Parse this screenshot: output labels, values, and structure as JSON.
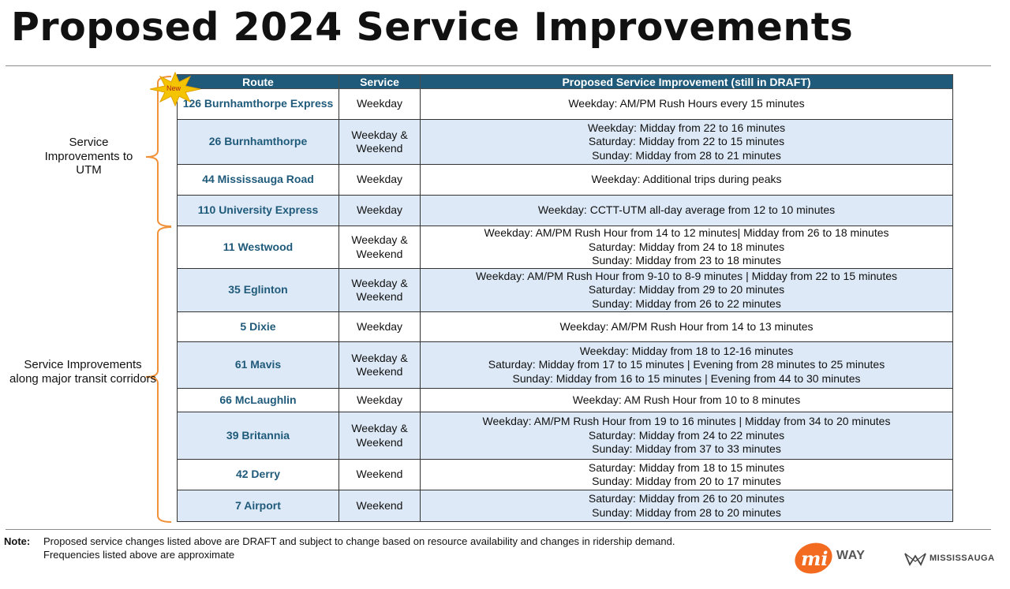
{
  "title": "Proposed 2024 Service Improvements",
  "badge": {
    "label": "New",
    "color": "#f5c400"
  },
  "table": {
    "headers": [
      "Route",
      "Service",
      "Proposed Service Improvement (still in DRAFT)"
    ],
    "rows": [
      {
        "route": "126 Burnhamthorpe Express",
        "service": "Weekday",
        "improvements": [
          "Weekday: AM/PM Rush Hours every 15 minutes"
        ]
      },
      {
        "route": "26 Burnhamthorpe",
        "service": "Weekday & Weekend",
        "improvements": [
          "Weekday: Midday from 22 to 16 minutes",
          "Saturday: Midday from 22 to 15 minutes",
          "Sunday: Midday from 28 to 21 minutes"
        ]
      },
      {
        "route": "44 Mississauga Road",
        "service": "Weekday",
        "improvements": [
          "Weekday: Additional trips during peaks"
        ]
      },
      {
        "route": "110 University Express",
        "service": "Weekday",
        "improvements": [
          "Weekday: CCTT-UTM all-day average from 12 to 10 minutes"
        ]
      },
      {
        "route": "11 Westwood",
        "service": "Weekday & Weekend",
        "improvements": [
          "Weekday: AM/PM Rush Hour from 14 to 12 minutes| Midday from 26 to 18 minutes",
          "Saturday: Midday from 24 to 18 minutes",
          "Sunday: Midday from 23 to 18 minutes"
        ]
      },
      {
        "route": "35 Eglinton",
        "service": "Weekday & Weekend",
        "improvements": [
          "Weekday: AM/PM Rush Hour from 9-10 to 8-9 minutes | Midday from 22 to 15 minutes",
          "Saturday: Midday from 29 to 20 minutes",
          "Sunday: Midday from 26 to 22 minutes"
        ]
      },
      {
        "route": "5 Dixie",
        "service": "Weekday",
        "improvements": [
          "Weekday: AM/PM Rush Hour from 14 to 13 minutes"
        ]
      },
      {
        "route": "61 Mavis",
        "service": "Weekday & Weekend",
        "improvements": [
          "Weekday: Midday from 18 to 12-16 minutes",
          "Saturday: Midday from 17 to 15 minutes | Evening from 28 minutes to 25 minutes",
          "Sunday: Midday from 16 to 15 minutes | Evening from 44 to 30 minutes"
        ]
      },
      {
        "route": "66 McLaughlin",
        "service": "Weekday",
        "improvements": [
          "Weekday: AM Rush Hour from 10 to 8 minutes"
        ]
      },
      {
        "route": "39 Britannia",
        "service": "Weekday & Weekend",
        "improvements": [
          "Weekday: AM/PM Rush Hour from 19 to 16 minutes | Midday from 34 to 20 minutes",
          "Saturday: Midday from 24 to 22 minutes",
          "Sunday: Midday from 37 to 33 minutes"
        ]
      },
      {
        "route": "42 Derry",
        "service": "Weekend",
        "improvements": [
          "Saturday: Midday from 18 to 15 minutes",
          "Sunday: Midday from 20 to 17 minutes"
        ]
      },
      {
        "route": "7 Airport",
        "service": "Weekend",
        "improvements": [
          "Saturday: Midday from 26 to 20 minutes",
          "Sunday: Midday from 28 to 20 minutes"
        ]
      }
    ]
  },
  "groups": [
    {
      "label": "Service Improvements to UTM"
    },
    {
      "label": "Service Improvements along major transit corridors"
    }
  ],
  "note": {
    "key": "Note:",
    "line1": "Proposed service changes listed above are DRAFT and subject to change based on resource availability and changes in ridership demand.",
    "line2": "Frequencies listed above are approximate"
  },
  "logos": {
    "miway_mark": "mi",
    "miway_word": "WAY",
    "city": "MISSISSAUGA"
  },
  "colors": {
    "header": "#1f5a7a",
    "shaded_row": "#dde9f6",
    "brace": "#f0923a",
    "miway_orange": "#f26b21"
  }
}
